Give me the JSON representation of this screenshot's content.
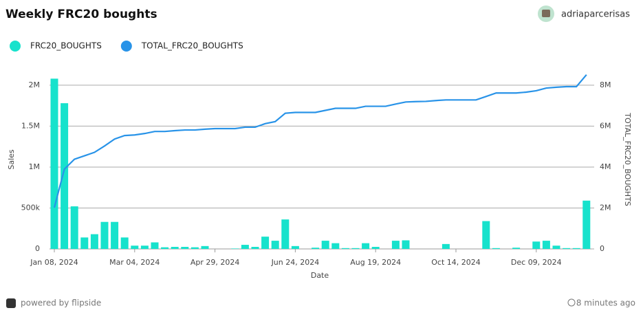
{
  "header": {
    "title": "Weekly FRC20 boughts",
    "user": "adriaparcerisas"
  },
  "chart_data": {
    "type": "bar_line",
    "xlabel": "Date",
    "ylabel": "Sales",
    "y2label": "TOTAL_FRC20_BOUGHTS",
    "x": [
      "2024-01-08",
      "2024-01-15",
      "2024-01-22",
      "2024-01-29",
      "2024-02-05",
      "2024-02-12",
      "2024-02-19",
      "2024-02-26",
      "2024-03-04",
      "2024-03-11",
      "2024-03-18",
      "2024-03-25",
      "2024-04-01",
      "2024-04-08",
      "2024-04-15",
      "2024-04-22",
      "2024-04-29",
      "2024-05-06",
      "2024-05-13",
      "2024-05-20",
      "2024-05-27",
      "2024-06-03",
      "2024-06-10",
      "2024-06-17",
      "2024-06-24",
      "2024-07-01",
      "2024-07-08",
      "2024-07-15",
      "2024-07-22",
      "2024-07-29",
      "2024-08-05",
      "2024-08-12",
      "2024-08-19",
      "2024-08-26",
      "2024-09-02",
      "2024-09-09",
      "2024-09-16",
      "2024-09-23",
      "2024-09-30",
      "2024-10-07",
      "2024-10-14",
      "2024-10-21",
      "2024-10-28",
      "2024-11-04",
      "2024-11-11",
      "2024-11-18",
      "2024-11-25",
      "2024-12-02",
      "2024-12-09",
      "2024-12-16",
      "2024-12-23",
      "2024-12-30",
      "2025-01-06",
      "2025-01-13"
    ],
    "xticks": [
      {
        "value": "2024-01-08",
        "label": "Jan 08, 2024"
      },
      {
        "value": "2024-03-04",
        "label": "Mar 04, 2024"
      },
      {
        "value": "2024-04-29",
        "label": "Apr 29, 2024"
      },
      {
        "value": "2024-06-24",
        "label": "Jun 24, 2024"
      },
      {
        "value": "2024-08-19",
        "label": "Aug 19, 2024"
      },
      {
        "value": "2024-10-14",
        "label": "Oct 14, 2024"
      },
      {
        "value": "2024-12-09",
        "label": "Dec 09, 2024"
      }
    ],
    "ylim": [
      0,
      2100000
    ],
    "yticks": [
      0,
      {
        "value": 500000,
        "label": "500k"
      },
      {
        "value": 1000000,
        "label": "1M"
      },
      {
        "value": 1500000,
        "label": "1.5M"
      },
      {
        "value": 2000000,
        "label": "2M"
      }
    ],
    "y2lim": [
      0,
      8400000
    ],
    "y2ticks": [
      0,
      {
        "value": 2000000,
        "label": "2M"
      },
      {
        "value": 4000000,
        "label": "4M"
      },
      {
        "value": 6000000,
        "label": "6M"
      },
      {
        "value": 8000000,
        "label": "8M"
      }
    ],
    "grid": true,
    "series": [
      {
        "name": "FRC20_BOUGHTS",
        "color": "#17e2cc",
        "kind": "bar",
        "values": [
          2080000,
          1780000,
          520000,
          140000,
          180000,
          330000,
          330000,
          140000,
          40000,
          40000,
          80000,
          20000,
          25000,
          25000,
          20000,
          35000,
          0,
          0,
          5000,
          50000,
          25000,
          150000,
          100000,
          360000,
          35000,
          0,
          15000,
          100000,
          70000,
          10000,
          10000,
          70000,
          25000,
          0,
          100000,
          105000,
          0,
          0,
          0,
          60000,
          0,
          0,
          0,
          340000,
          10000,
          0,
          15000,
          0,
          90000,
          100000,
          40000,
          10000,
          10000,
          590000
        ]
      },
      {
        "name": "TOTAL_FRC20_BOUGHTS",
        "color": "#2893e8",
        "kind": "line",
        "axis": "y2",
        "values": [
          2020000,
          3900000,
          4380000,
          4550000,
          4720000,
          5030000,
          5370000,
          5540000,
          5570000,
          5640000,
          5740000,
          5740000,
          5780000,
          5810000,
          5810000,
          5850000,
          5880000,
          5880000,
          5880000,
          5950000,
          5950000,
          6120000,
          6220000,
          6630000,
          6670000,
          6670000,
          6670000,
          6770000,
          6870000,
          6870000,
          6870000,
          6970000,
          6970000,
          6970000,
          7080000,
          7180000,
          7200000,
          7210000,
          7250000,
          7280000,
          7280000,
          7280000,
          7280000,
          7450000,
          7620000,
          7620000,
          7620000,
          7660000,
          7730000,
          7860000,
          7900000,
          7930000,
          7930000,
          8510000
        ]
      }
    ]
  },
  "footer": {
    "brand": "powered by flipside",
    "updated": "8 minutes ago"
  }
}
